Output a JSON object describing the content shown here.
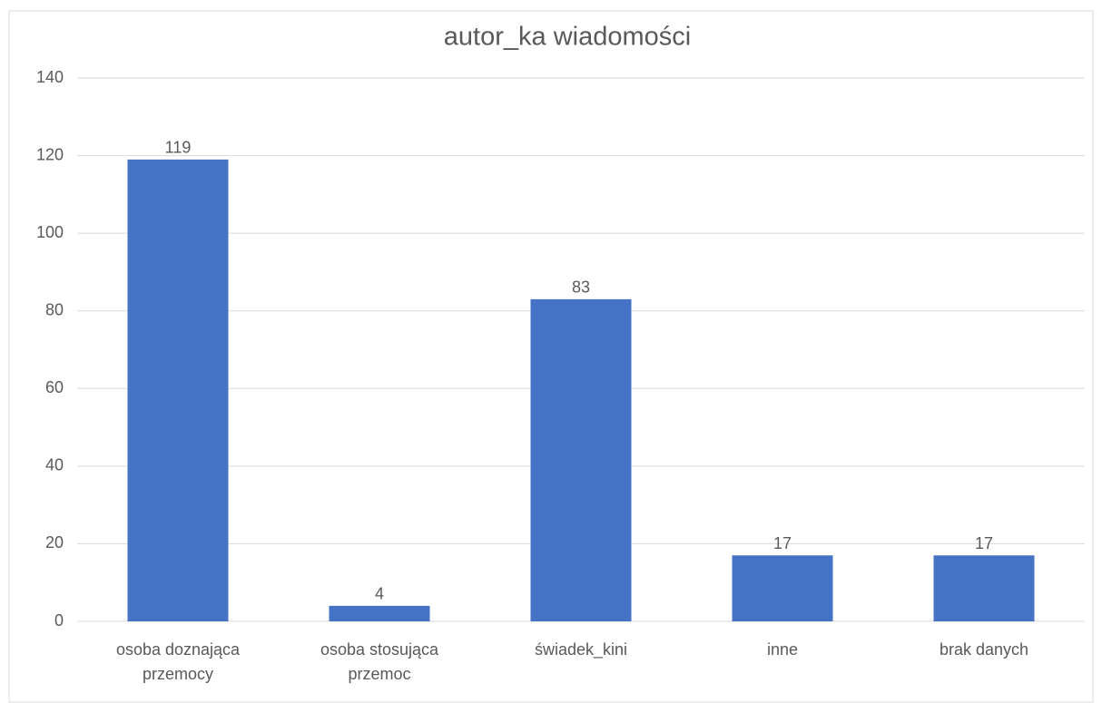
{
  "chart_data": {
    "type": "bar",
    "title": "autor_ka wiadomości",
    "categories": [
      "osoba doznająca przemocy",
      "osoba stosująca przemoc",
      "świadek_kini",
      "inne",
      "brak danych"
    ],
    "values": [
      119,
      4,
      83,
      17,
      17
    ],
    "color": "#4472c4",
    "ylim": [
      0,
      140
    ],
    "yticks": [
      0,
      20,
      40,
      60,
      80,
      100,
      120,
      140
    ],
    "grid": true
  }
}
